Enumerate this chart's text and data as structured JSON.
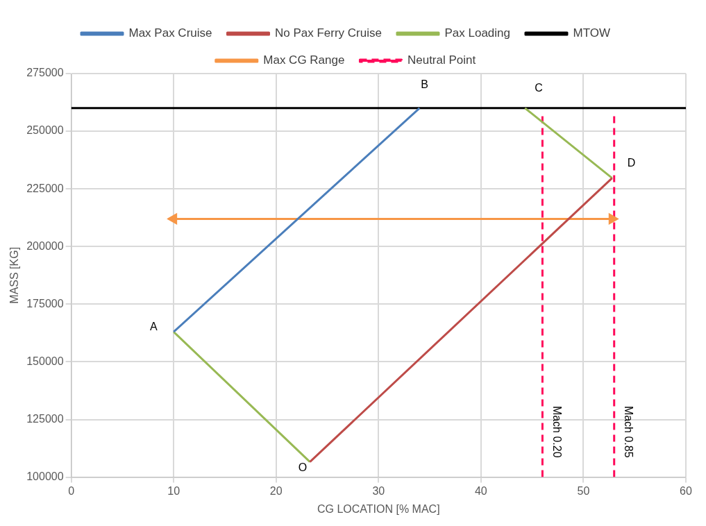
{
  "chart_data": {
    "type": "line",
    "xlabel": "CG LOCATION [% MAC]",
    "ylabel": "MASS [KG]",
    "xlim": [
      0,
      60
    ],
    "xticks": [
      0,
      10,
      20,
      30,
      40,
      50,
      60
    ],
    "ylim": [
      100000,
      275000
    ],
    "yticks": [
      100000,
      125000,
      150000,
      175000,
      200000,
      225000,
      250000,
      275000
    ],
    "grid": true,
    "legend": "top",
    "series": [
      {
        "name": "Max Pax Cruise",
        "color": "#4a7ebb",
        "x": [
          10,
          34
        ],
        "values": [
          163000,
          260000
        ]
      },
      {
        "name": "No Pax Ferry Cruise",
        "color": "#be4b48",
        "x": [
          23.3,
          52.8
        ],
        "values": [
          106600,
          229700
        ]
      },
      {
        "name": "Pax Loading",
        "color": "#98b954",
        "x": [
          10,
          23.3,
          null,
          44.3,
          52.8
        ],
        "values": [
          163000,
          106600,
          null,
          260000,
          229700
        ]
      },
      {
        "name": "MTOW",
        "color": "#000000",
        "x": [
          0,
          60
        ],
        "values": [
          260000,
          260000
        ]
      },
      {
        "name": "Max CG Range",
        "color": "#f79646",
        "x": [
          10,
          52.8
        ],
        "values": [
          212000,
          212000
        ],
        "marker": "triangle"
      },
      {
        "name": "Neutral Point",
        "color": "#ff0a5a",
        "line_style": "dashed",
        "x": [
          46,
          46,
          null,
          53,
          53
        ],
        "values": [
          100000,
          257500,
          null,
          100000,
          257500
        ]
      }
    ],
    "annotations": [
      {
        "text": "A",
        "x": 10,
        "y": 163000
      },
      {
        "text": "B",
        "x": 34,
        "y": 260000
      },
      {
        "text": "C",
        "x": 44.3,
        "y": 260000
      },
      {
        "text": "D",
        "x": 52.8,
        "y": 229700
      },
      {
        "text": "O",
        "x": 23.3,
        "y": 106600
      },
      {
        "text": "Mach 0.20",
        "x": 46,
        "y": 100000
      },
      {
        "text": "Mach 0.85",
        "x": 53,
        "y": 100000
      }
    ]
  }
}
